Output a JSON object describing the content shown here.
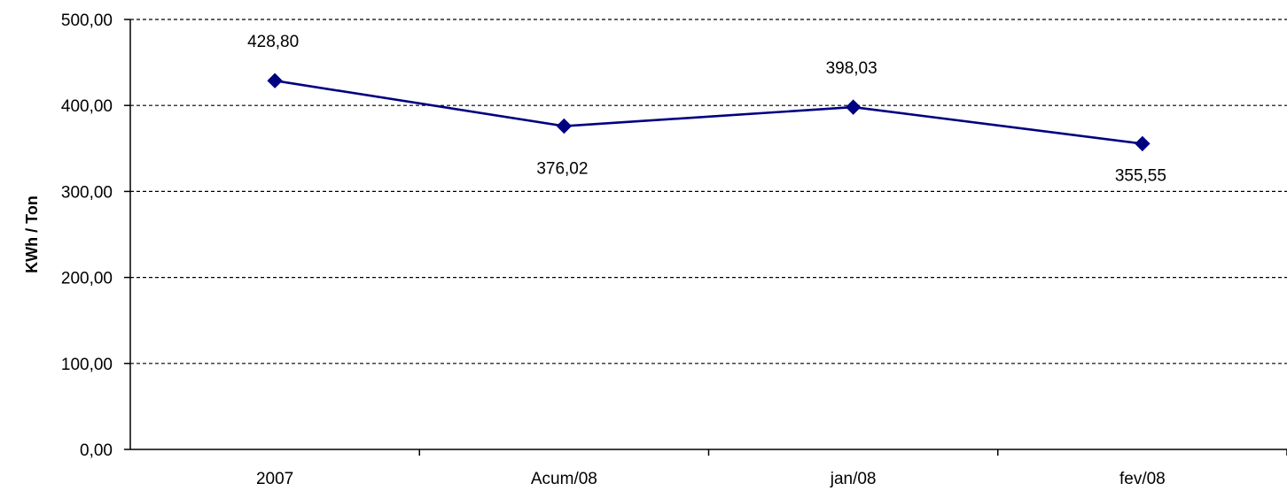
{
  "chart_data": {
    "type": "line",
    "title": "",
    "xlabel": "",
    "ylabel": "KWh / Ton",
    "categories": [
      "2007",
      "Acum/08",
      "jan/08",
      "fev/08"
    ],
    "series": [
      {
        "values": [
          428.8,
          376.02,
          398.03,
          355.55
        ],
        "data_labels": [
          "428,80",
          "376,02",
          "398,03",
          "355,55"
        ],
        "color": "#000080",
        "marker": "diamond"
      }
    ],
    "ylim": [
      0,
      500
    ],
    "yticks": [
      0,
      100,
      200,
      300,
      400,
      500
    ],
    "ytick_labels": [
      "0,00",
      "100,00",
      "200,00",
      "300,00",
      "400,00",
      "500,00"
    ],
    "grid": "horizontal-dashed",
    "legend": "none"
  },
  "colors": {
    "series_line": "#000080",
    "axis": "#000000",
    "gridline": "#000000",
    "background": "#ffffff"
  }
}
